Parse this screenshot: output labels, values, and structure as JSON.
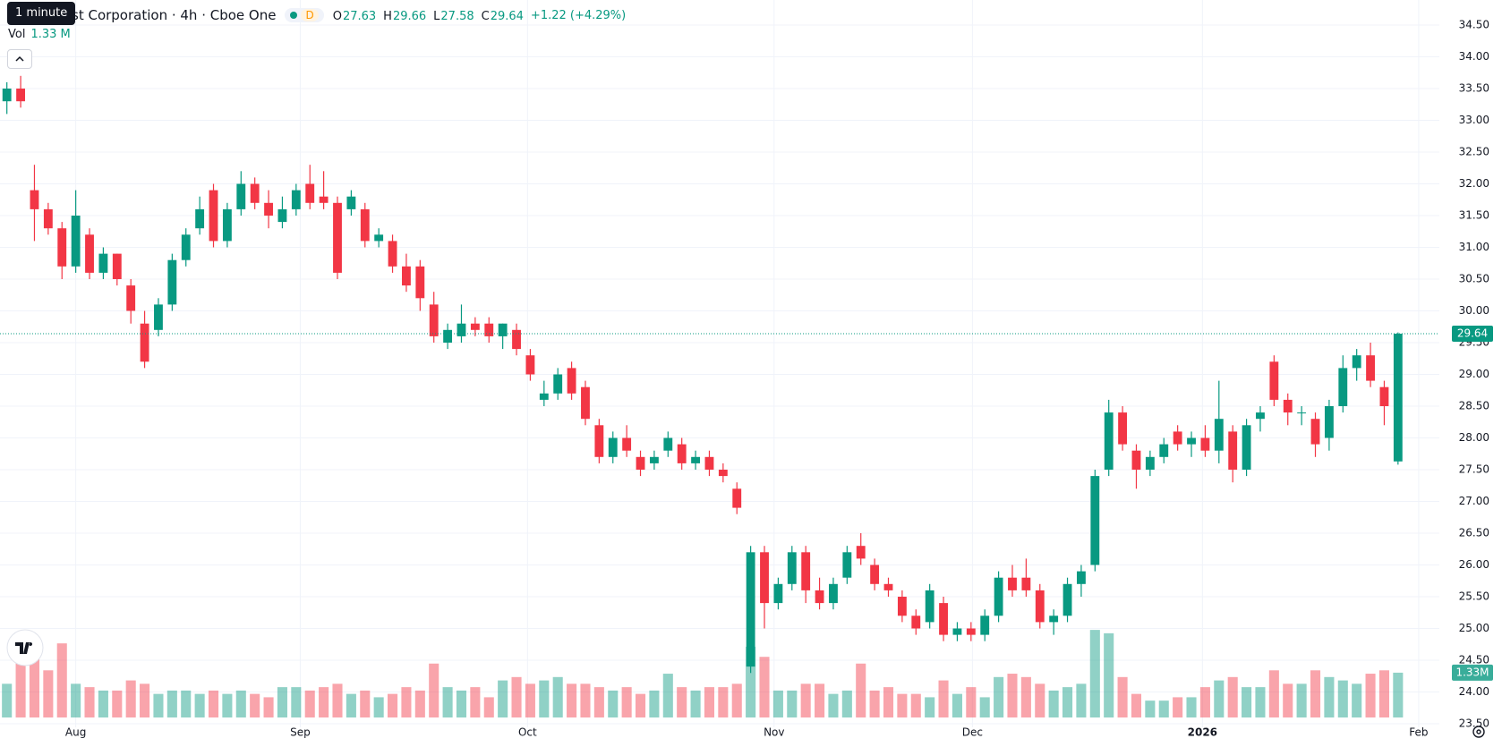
{
  "header": {
    "tooltip": "1 minute",
    "title": "st Corporation · 4h · Cboe One",
    "badge": "D",
    "ohlc": [
      {
        "label": "O",
        "value": 27.63
      },
      {
        "label": "H",
        "value": 29.66
      },
      {
        "label": "L",
        "value": 27.58
      },
      {
        "label": "C",
        "value": 29.64
      }
    ],
    "change": "+1.22 (+4.29%)",
    "volume_label": "Vol",
    "volume_value": "1.33 M"
  },
  "chart_data": {
    "type": "candlestick",
    "up_color": "#089981",
    "down_color": "#f23645",
    "grid": true,
    "xlim": [
      -0.5,
      104
    ],
    "xticks": [
      {
        "value": 5,
        "label": "Aug"
      },
      {
        "value": 21.3,
        "label": "Sep"
      },
      {
        "value": 37.8,
        "label": "Oct"
      },
      {
        "value": 55.7,
        "label": "Nov"
      },
      {
        "value": 70.1,
        "label": "Dec"
      },
      {
        "value": 86.8,
        "label": "2026"
      },
      {
        "value": 102.5,
        "label": "Feb"
      }
    ],
    "ylim": [
      23.5,
      34.5
    ],
    "yticks": [
      {
        "value": 23.5,
        "label": "23.50"
      },
      {
        "value": 24,
        "label": "24.00"
      },
      {
        "value": 24.5,
        "label": "24.50"
      },
      {
        "value": 25,
        "label": "25.00"
      },
      {
        "value": 25.5,
        "label": "25.50"
      },
      {
        "value": 26,
        "label": "26.00"
      },
      {
        "value": 26.5,
        "label": "26.50"
      },
      {
        "value": 27,
        "label": "27.00"
      },
      {
        "value": 27.5,
        "label": "27.50"
      },
      {
        "value": 28,
        "label": "28.00"
      },
      {
        "value": 28.5,
        "label": "28.50"
      },
      {
        "value": 29,
        "label": "29.00"
      },
      {
        "value": 29.5,
        "label": "29.50"
      },
      {
        "value": 30,
        "label": "30.00"
      },
      {
        "value": 30.5,
        "label": "30.50"
      },
      {
        "value": 31,
        "label": "31.00"
      },
      {
        "value": 31.5,
        "label": "31.50"
      },
      {
        "value": 32,
        "label": "32.00"
      },
      {
        "value": 32.5,
        "label": "32.50"
      },
      {
        "value": 33,
        "label": "33.00"
      },
      {
        "value": 33.5,
        "label": "33.50"
      },
      {
        "value": 34,
        "label": "34.00"
      },
      {
        "value": 34.5,
        "label": "34.50"
      }
    ],
    "vol_lim": [
      0,
      21.3
    ],
    "last_price": 29.64,
    "last_volume": {
      "value": 1.33,
      "label": "1.33M"
    },
    "candles": [
      [
        33.3,
        33.6,
        33.1,
        33.5
      ],
      [
        33.5,
        33.7,
        33.2,
        33.3
      ],
      [
        31.9,
        32.3,
        31.1,
        31.6
      ],
      [
        31.6,
        31.7,
        31.2,
        31.3
      ],
      [
        31.3,
        31.4,
        30.5,
        30.7
      ],
      [
        30.7,
        31.9,
        30.6,
        31.5
      ],
      [
        31.2,
        31.3,
        30.5,
        30.6
      ],
      [
        30.6,
        31.0,
        30.5,
        30.9
      ],
      [
        30.9,
        30.9,
        30.4,
        30.5
      ],
      [
        30.4,
        30.5,
        29.8,
        30.0
      ],
      [
        29.8,
        30.0,
        29.1,
        29.2
      ],
      [
        29.7,
        30.2,
        29.6,
        30.1
      ],
      [
        30.1,
        30.9,
        30.0,
        30.8
      ],
      [
        30.8,
        31.3,
        30.7,
        31.2
      ],
      [
        31.3,
        31.8,
        31.2,
        31.6
      ],
      [
        31.9,
        32.0,
        31.0,
        31.1
      ],
      [
        31.1,
        31.7,
        31.0,
        31.6
      ],
      [
        31.6,
        32.2,
        31.5,
        32.0
      ],
      [
        32.0,
        32.1,
        31.6,
        31.7
      ],
      [
        31.7,
        31.9,
        31.3,
        31.5
      ],
      [
        31.4,
        31.8,
        31.3,
        31.6
      ],
      [
        31.6,
        32.0,
        31.5,
        31.9
      ],
      [
        32.0,
        32.3,
        31.6,
        31.7
      ],
      [
        31.8,
        32.2,
        31.6,
        31.7
      ],
      [
        31.7,
        31.8,
        30.5,
        30.6
      ],
      [
        31.6,
        31.9,
        31.5,
        31.8
      ],
      [
        31.6,
        31.7,
        31.0,
        31.1
      ],
      [
        31.1,
        31.3,
        31.0,
        31.2
      ],
      [
        31.1,
        31.2,
        30.6,
        30.7
      ],
      [
        30.7,
        30.9,
        30.3,
        30.4
      ],
      [
        30.7,
        30.8,
        30.0,
        30.2
      ],
      [
        30.1,
        30.3,
        29.5,
        29.6
      ],
      [
        29.5,
        29.8,
        29.4,
        29.7
      ],
      [
        29.6,
        30.1,
        29.5,
        29.8
      ],
      [
        29.8,
        29.9,
        29.6,
        29.7
      ],
      [
        29.8,
        29.9,
        29.5,
        29.6
      ],
      [
        29.6,
        29.8,
        29.4,
        29.8
      ],
      [
        29.7,
        29.8,
        29.3,
        29.4
      ],
      [
        29.3,
        29.4,
        28.9,
        29.0
      ],
      [
        28.6,
        28.9,
        28.5,
        28.7
      ],
      [
        28.7,
        29.1,
        28.6,
        29.0
      ],
      [
        29.1,
        29.2,
        28.6,
        28.7
      ],
      [
        28.8,
        28.9,
        28.2,
        28.3
      ],
      [
        28.2,
        28.3,
        27.6,
        27.7
      ],
      [
        27.7,
        28.1,
        27.6,
        28.0
      ],
      [
        28.0,
        28.2,
        27.7,
        27.8
      ],
      [
        27.7,
        27.8,
        27.4,
        27.5
      ],
      [
        27.6,
        27.8,
        27.5,
        27.7
      ],
      [
        27.8,
        28.1,
        27.7,
        28.0
      ],
      [
        27.9,
        28.0,
        27.5,
        27.6
      ],
      [
        27.6,
        27.8,
        27.5,
        27.7
      ],
      [
        27.7,
        27.8,
        27.4,
        27.5
      ],
      [
        27.5,
        27.6,
        27.3,
        27.4
      ],
      [
        27.2,
        27.3,
        26.8,
        26.9
      ],
      [
        24.4,
        26.3,
        24.3,
        26.2
      ],
      [
        26.2,
        26.3,
        25.0,
        25.4
      ],
      [
        25.4,
        25.8,
        25.3,
        25.7
      ],
      [
        25.7,
        26.3,
        25.6,
        26.2
      ],
      [
        26.2,
        26.3,
        25.4,
        25.6
      ],
      [
        25.6,
        25.8,
        25.3,
        25.4
      ],
      [
        25.4,
        25.8,
        25.3,
        25.7
      ],
      [
        25.8,
        26.3,
        25.7,
        26.2
      ],
      [
        26.3,
        26.5,
        26.0,
        26.1
      ],
      [
        26.0,
        26.1,
        25.6,
        25.7
      ],
      [
        25.7,
        25.8,
        25.5,
        25.6
      ],
      [
        25.5,
        25.6,
        25.1,
        25.2
      ],
      [
        25.2,
        25.3,
        24.9,
        25.0
      ],
      [
        25.1,
        25.7,
        25.0,
        25.6
      ],
      [
        25.4,
        25.5,
        24.8,
        24.9
      ],
      [
        24.9,
        25.1,
        24.8,
        25.0
      ],
      [
        25.0,
        25.1,
        24.8,
        24.9
      ],
      [
        24.9,
        25.3,
        24.8,
        25.2
      ],
      [
        25.2,
        25.9,
        25.1,
        25.8
      ],
      [
        25.8,
        26.0,
        25.5,
        25.6
      ],
      [
        25.8,
        26.1,
        25.5,
        25.6
      ],
      [
        25.6,
        25.7,
        25.0,
        25.1
      ],
      [
        25.1,
        25.3,
        24.9,
        25.2
      ],
      [
        25.2,
        25.8,
        25.1,
        25.7
      ],
      [
        25.7,
        26.0,
        25.5,
        25.9
      ],
      [
        26.0,
        27.5,
        25.9,
        27.4
      ],
      [
        27.5,
        28.6,
        27.4,
        28.4
      ],
      [
        28.4,
        28.5,
        27.8,
        27.9
      ],
      [
        27.8,
        27.9,
        27.2,
        27.5
      ],
      [
        27.5,
        27.8,
        27.4,
        27.7
      ],
      [
        27.7,
        28.0,
        27.6,
        27.9
      ],
      [
        28.1,
        28.2,
        27.8,
        27.9
      ],
      [
        27.9,
        28.1,
        27.7,
        28.0
      ],
      [
        28.0,
        28.2,
        27.7,
        27.8
      ],
      [
        27.8,
        28.9,
        27.6,
        28.3
      ],
      [
        28.1,
        28.2,
        27.3,
        27.5
      ],
      [
        27.5,
        28.3,
        27.4,
        28.2
      ],
      [
        28.3,
        28.5,
        28.1,
        28.4
      ],
      [
        29.2,
        29.3,
        28.5,
        28.6
      ],
      [
        28.6,
        28.7,
        28.2,
        28.4
      ],
      [
        28.4,
        28.5,
        28.2,
        28.4
      ],
      [
        28.3,
        28.4,
        27.7,
        27.9
      ],
      [
        28.0,
        28.6,
        27.8,
        28.5
      ],
      [
        28.5,
        29.3,
        28.4,
        29.1
      ],
      [
        29.1,
        29.4,
        28.9,
        29.3
      ],
      [
        29.3,
        29.5,
        28.8,
        28.9
      ],
      [
        28.8,
        28.9,
        28.2,
        28.5
      ],
      [
        27.63,
        29.66,
        27.58,
        29.64
      ]
    ],
    "volumes": [
      1.0,
      2.1,
      1.8,
      1.4,
      2.2,
      1.0,
      0.9,
      0.8,
      0.8,
      1.1,
      1.0,
      0.7,
      0.8,
      0.8,
      0.7,
      0.8,
      0.7,
      0.8,
      0.7,
      0.6,
      0.9,
      0.9,
      0.8,
      0.9,
      1.0,
      0.7,
      0.8,
      0.6,
      0.7,
      0.9,
      0.8,
      1.6,
      0.9,
      0.8,
      0.9,
      0.6,
      1.1,
      1.2,
      1.0,
      1.1,
      1.2,
      1.0,
      1.0,
      0.9,
      0.8,
      0.9,
      0.7,
      0.8,
      1.3,
      0.9,
      0.8,
      0.9,
      0.9,
      1.0,
      2.1,
      1.8,
      0.8,
      0.8,
      1.0,
      1.0,
      0.7,
      0.8,
      1.6,
      0.8,
      0.9,
      0.7,
      0.7,
      0.6,
      1.1,
      0.7,
      0.9,
      0.6,
      1.2,
      1.3,
      1.2,
      1.0,
      0.8,
      0.9,
      1.0,
      2.6,
      2.5,
      1.2,
      0.7,
      0.5,
      0.5,
      0.6,
      0.6,
      0.9,
      1.1,
      1.2,
      0.9,
      0.9,
      1.4,
      1.0,
      1.0,
      1.4,
      1.2,
      1.1,
      1.0,
      1.3,
      1.4,
      1.33
    ]
  }
}
